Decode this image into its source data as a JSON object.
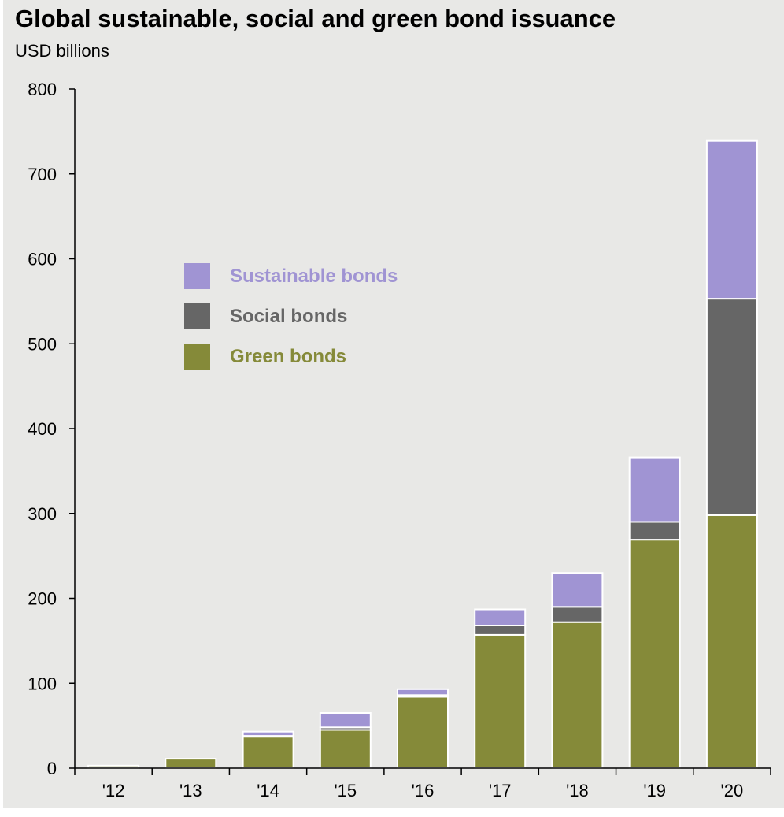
{
  "header": {
    "title": "Global sustainable, social and green bond issuance",
    "subtitle": "USD billions"
  },
  "legend": {
    "items": [
      {
        "label": "Sustainable bonds",
        "color": "#a094d3"
      },
      {
        "label": "Social bonds",
        "color": "#666666"
      },
      {
        "label": "Green bonds",
        "color": "#858a39"
      }
    ]
  },
  "chart_data": {
    "type": "bar",
    "stacked": true,
    "title": "Global sustainable, social and green bond issuance",
    "subtitle": "USD billions",
    "xlabel": "",
    "ylabel": "",
    "categories": [
      "'12",
      "'13",
      "'14",
      "'15",
      "'16",
      "'17",
      "'18",
      "'19",
      "'20"
    ],
    "ylim": [
      0,
      800
    ],
    "yticks": [
      0,
      100,
      200,
      300,
      400,
      500,
      600,
      700,
      800
    ],
    "grid": false,
    "legend_position": "upper-left",
    "series": [
      {
        "name": "Green bonds",
        "color": "#858a39",
        "values": [
          3,
          11,
          37,
          45,
          84,
          157,
          172,
          269,
          298
        ]
      },
      {
        "name": "Social bonds",
        "color": "#666666",
        "values": [
          0,
          0,
          1,
          3,
          2,
          11,
          18,
          21,
          255
        ]
      },
      {
        "name": "Sustainable bonds",
        "color": "#a094d3",
        "values": [
          0,
          0,
          5,
          17,
          7,
          19,
          40,
          76,
          186
        ]
      }
    ]
  }
}
